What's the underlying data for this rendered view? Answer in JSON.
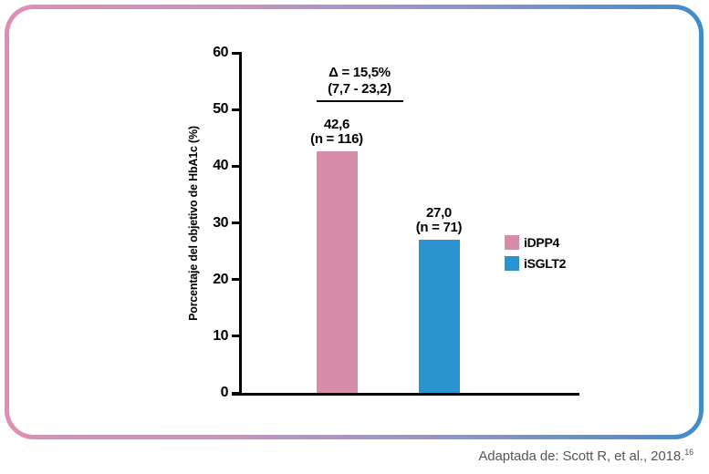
{
  "frame": {
    "border_gradient_left": "#E18DB3",
    "border_gradient_right": "#3E8DCB"
  },
  "chart_data": {
    "type": "bar",
    "title": "",
    "xlabel": "",
    "ylabel": "Porcentaje del objetivo de HbA1c (%)",
    "ylim": [
      0,
      60
    ],
    "yticks": [
      0,
      10,
      20,
      30,
      40,
      50,
      60
    ],
    "grid": false,
    "categories": [
      "iDPP4",
      "iSGLT2"
    ],
    "values": [
      42.6,
      27.0
    ],
    "value_labels": [
      "42,6",
      "27,0"
    ],
    "n_labels": [
      "(n = 116)",
      "(n = 71)"
    ],
    "colors": [
      "#D78DAA",
      "#2A93D0"
    ],
    "annotation": {
      "line1": "Δ = 15,5%",
      "line2": "(7,7 - 23,2)"
    },
    "legend": {
      "position": "right",
      "entries": [
        {
          "label": "iDPP4",
          "color": "#D78DAA"
        },
        {
          "label": "iSGLT2",
          "color": "#2A93D0"
        }
      ]
    }
  },
  "caption": {
    "text": "Adaptada de: Scott R, et al., 2018.",
    "ref": "16"
  }
}
